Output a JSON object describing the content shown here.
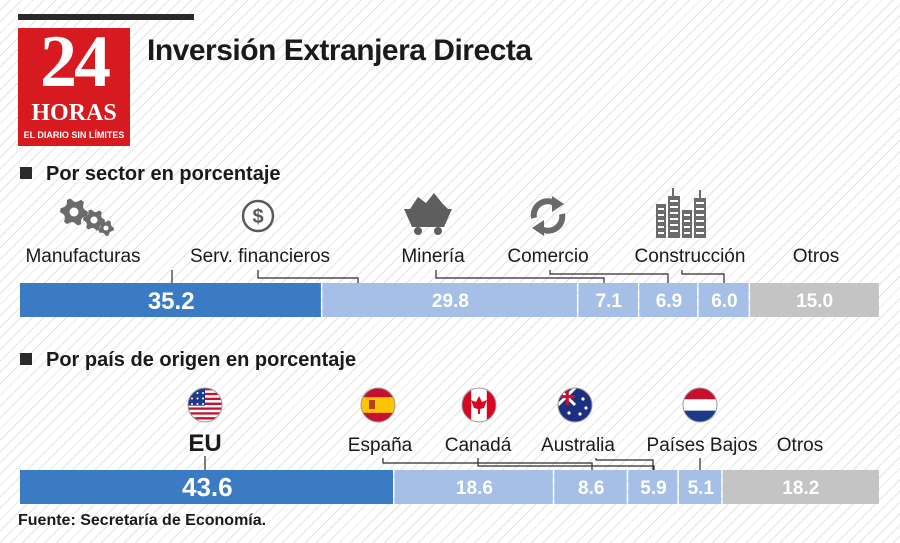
{
  "title": "Inversión Extranjera Directa",
  "logo": {
    "number": "24",
    "word": "HORAS",
    "tagline": "EL DIARIO SIN LÍMITES"
  },
  "source": "Fuente: Secretaría de Economía.",
  "colors": {
    "primary": "#3a7bc4",
    "secondary": "#a5bfe6",
    "other": "#c4c4c4",
    "brand": "#d71920"
  },
  "chart_data": [
    {
      "type": "bar",
      "title": "Por sector en porcentaje",
      "orientation": "horizontal-stacked",
      "categories": [
        "Manufacturas",
        "Serv. financieros",
        "Minería",
        "Comercio",
        "Construcción",
        "Otros"
      ],
      "values": [
        35.2,
        29.8,
        7.1,
        6.9,
        6.0,
        15.0
      ],
      "value_labels": [
        "35.2",
        "29.8",
        "7.1",
        "6.9",
        "6.0",
        "15.0"
      ],
      "icons": [
        "gears-icon",
        "dollar-icon",
        "mining-cart-icon",
        "recycle-arrows-icon",
        "buildings-icon",
        null
      ],
      "colors": [
        "#3a7bc4",
        "#a5bfe6",
        "#a5bfe6",
        "#a5bfe6",
        "#a5bfe6",
        "#c4c4c4"
      ]
    },
    {
      "type": "bar",
      "title": "Por país de origen en porcentaje",
      "orientation": "horizontal-stacked",
      "categories": [
        "EU",
        "España",
        "Canadá",
        "Australia",
        "Países Bajos",
        "Otros"
      ],
      "values": [
        43.6,
        18.6,
        8.6,
        5.9,
        5.1,
        18.2
      ],
      "value_labels": [
        "43.6",
        "18.6",
        "8.6",
        "5.9",
        "5.1",
        "18.2"
      ],
      "icons": [
        "usa-flag-icon",
        "spain-flag-icon",
        "canada-flag-icon",
        "australia-flag-icon",
        "netherlands-flag-icon",
        null
      ],
      "colors": [
        "#3a7bc4",
        "#a5bfe6",
        "#a5bfe6",
        "#a5bfe6",
        "#a5bfe6",
        "#c4c4c4"
      ]
    }
  ]
}
